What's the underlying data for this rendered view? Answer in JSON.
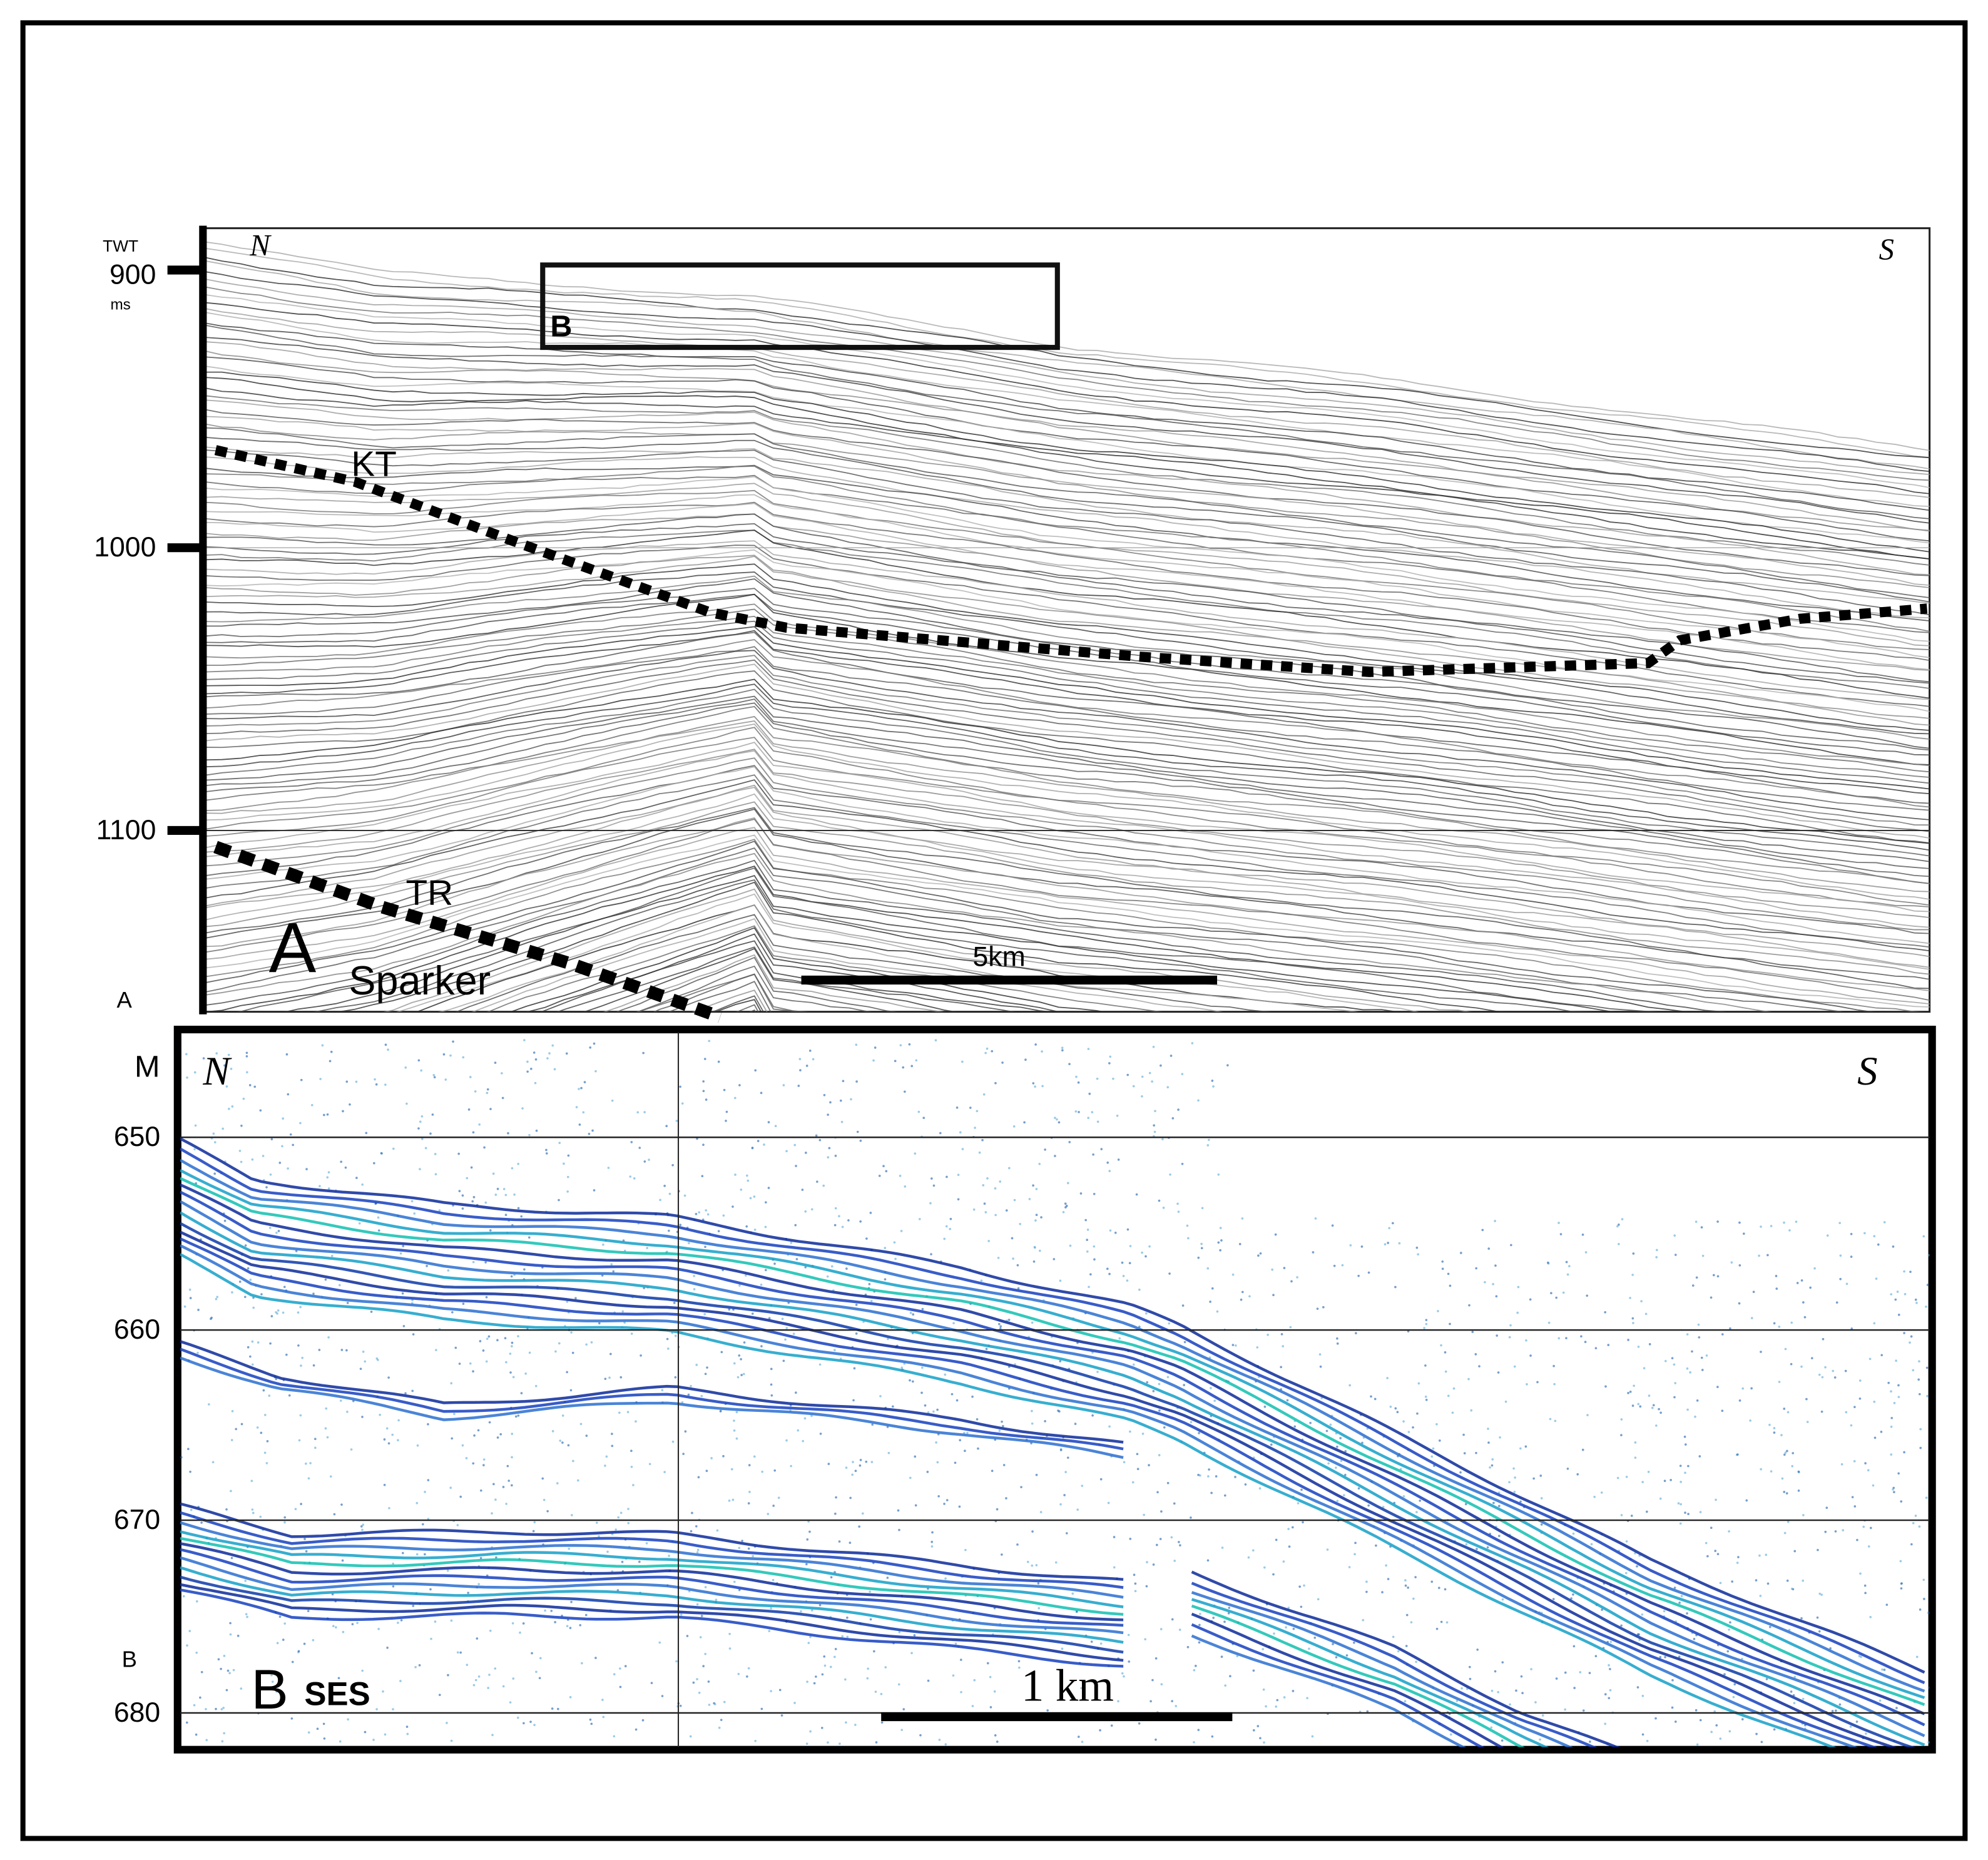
{
  "panel_a": {
    "axis_title": "TWT",
    "axis_unit": "ms",
    "ticks": [
      "900",
      "1000",
      "1100"
    ],
    "north": "N",
    "south": "S",
    "inset_label": "B",
    "horizons": [
      "KT",
      "TR"
    ],
    "label": "A",
    "method": "Sparker",
    "scale_bar": "5km",
    "corner_label": "A"
  },
  "panel_b": {
    "axis_title": "M",
    "ticks": [
      "650",
      "660",
      "670",
      "680"
    ],
    "north": "N",
    "south": "S",
    "label": "B",
    "method": "SES",
    "scale_bar": "1 km",
    "corner_label": "B"
  }
}
